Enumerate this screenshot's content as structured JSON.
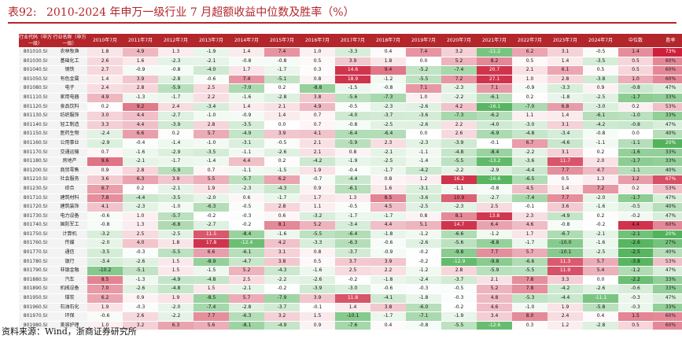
{
  "title": {
    "label": "表92:",
    "text": "2010-2024 年申万一级行业 7 月超额收益中位数及胜率（%）"
  },
  "table": {
    "headers": [
      "行业代码（申万一级）",
      "行业名称（申万一级）",
      "2010年7月",
      "2011年7月",
      "2012年7月",
      "2013年7月",
      "2014年7月",
      "2015年7月",
      "2016年7月",
      "2017年7月",
      "2018年7月",
      "2019年7月",
      "2020年7月",
      "2021年7月",
      "2022年7月",
      "2023年7月",
      "2024年7月",
      "中位数",
      "胜率"
    ],
    "rows": [
      [
        "801010.SI",
        "农林牧渔",
        "1.8",
        "4.9",
        "1.3",
        "-1.9",
        "1.4",
        "7.4",
        "1.0",
        "-3.3",
        "0.4",
        "7.4",
        "3.2",
        "-11.2",
        "6.2",
        "3.1",
        "-0.5",
        "1.4",
        "73%"
      ],
      [
        "801030.SI",
        "基础化工",
        "2.6",
        "1.6",
        "-2.3",
        "-2.1",
        "-0.8",
        "-0.8",
        "0.5",
        "3.9",
        "1.8",
        "0.0",
        "5.2",
        "8.2",
        "0.5",
        "1.4",
        "-3.5",
        "0.5",
        "60%"
      ],
      [
        "801040.SI",
        "钢铁",
        "2.7",
        "-0.9",
        "-0.8",
        "-4.0",
        "1.7",
        "-1.7",
        "0.3",
        "14.6",
        "9.4",
        "-5.2",
        "-7.4",
        "20.7",
        "2.1",
        "6.1",
        "0.5",
        "0.5",
        "60%"
      ],
      [
        "801050.SI",
        "有色金属",
        "1.4",
        "3.9",
        "-2.8",
        "-0.6",
        "7.4",
        "-5.1",
        "0.8",
        "18.9",
        "-1.2",
        "-5.5",
        "7.2",
        "27.1",
        "1.0",
        "2.8",
        "-3.8",
        "1.0",
        "60%"
      ],
      [
        "801080.SI",
        "电子",
        "2.4",
        "2.8",
        "-5.9",
        "2.5",
        "-7.0",
        "0.2",
        "-8.8",
        "-1.5",
        "-0.8",
        "7.1",
        "-2.3",
        "7.1",
        "-0.9",
        "-3.3",
        "0.9",
        "-0.8",
        "47%"
      ],
      [
        "801110.SI",
        "家用电器",
        "4.9",
        "-1.3",
        "-1.7",
        "2.2",
        "-1.6",
        "-2.8",
        "3.8",
        "-5.6",
        "-7.3",
        "1.0",
        "-2.2",
        "-6.1",
        "0.2",
        "-1.8",
        "-2.5",
        "-1.7",
        "33%"
      ],
      [
        "801120.SI",
        "食品饮料",
        "0.2",
        "9.2",
        "2.4",
        "-3.4",
        "1.4",
        "2.1",
        "4.9",
        "-0.5",
        "-2.3",
        "-2.6",
        "4.2",
        "-16.1",
        "-7.0",
        "6.8",
        "-3.0",
        "0.2",
        "53%"
      ],
      [
        "801130.SI",
        "纺织服饰",
        "3.0",
        "4.4",
        "-2.7",
        "-1.0",
        "-0.9",
        "1.4",
        "0.7",
        "-4.0",
        "-3.7",
        "-3.6",
        "-7.3",
        "-6.2",
        "1.1",
        "1.4",
        "-6.1",
        "-1.0",
        "33%"
      ],
      [
        "801140.SI",
        "轻工制造",
        "3.3",
        "4.4",
        "-3.9",
        "2.8",
        "-3.5",
        "0.0",
        "0.7",
        "-0.8",
        "-2.5",
        "-2.6",
        "2.2",
        "-4.0",
        "-3.0",
        "3.1",
        "-4.2",
        "-0.8",
        "47%"
      ],
      [
        "801150.SI",
        "医药生物",
        "-2.4",
        "6.6",
        "0.2",
        "5.7",
        "-4.9",
        "3.9",
        "4.1",
        "-6.4",
        "-6.4",
        "0.0",
        "2.6",
        "-6.9",
        "-4.8",
        "-3.4",
        "-0.8",
        "0.0",
        "40%"
      ],
      [
        "801160.SI",
        "公用事业",
        "-2.9",
        "-0.4",
        "-1.4",
        "-1.0",
        "-3.1",
        "-0.5",
        "2.1",
        "-5.9",
        "2.3",
        "-2.3",
        "-3.9",
        "-0.1",
        "6.7",
        "-4.6",
        "-1.1",
        "-1.1",
        "20%"
      ],
      [
        "801170.SI",
        "交通运输",
        "0.7",
        "-1.6",
        "-2.9",
        "-3.5",
        "-1.1",
        "-2.6",
        "2.1",
        "0.8",
        "-2.1",
        "-1.1",
        "-4.8",
        "-8.4",
        "-2.2",
        "3.1",
        "0.2",
        "-1.6",
        "33%"
      ],
      [
        "801180.SI",
        "房地产",
        "9.6",
        "-2.1",
        "-1.7",
        "-1.4",
        "4.4",
        "0.2",
        "-4.2",
        "-1.9",
        "-2.5",
        "-1.4",
        "-5.5",
        "-13.2",
        "-3.6",
        "11.7",
        "2.0",
        "-1.7",
        "33%"
      ],
      [
        "801200.SI",
        "商贸零售",
        "0.9",
        "2.8",
        "-5.9",
        "0.7",
        "-1.1",
        "-1.5",
        "1.9",
        "-0.4",
        "-1.7",
        "-4.2",
        "-2.2",
        "-2.9",
        "-4.4",
        "7.7",
        "4.7",
        "-1.1",
        "40%"
      ],
      [
        "801210.SI",
        "社会服务",
        "3.6",
        "6.3",
        "3.9",
        "5.5",
        "-5.7",
        "6.2",
        "-0.7",
        "-4.4",
        "0.8",
        "1.2",
        "16.2",
        "-16.6",
        "-6.5",
        "0.5",
        "1.3",
        "1.2",
        "67%"
      ],
      [
        "801230.SI",
        "综合",
        "6.7",
        "0.2",
        "-2.1",
        "1.9",
        "-2.3",
        "-4.3",
        "0.9",
        "-6.1",
        "1.6",
        "-3.1",
        "-1.1",
        "-0.8",
        "4.5",
        "1.4",
        "7.2",
        "0.2",
        "53%"
      ],
      [
        "801710.SI",
        "建筑材料",
        "7.8",
        "-4.4",
        "-3.5",
        "-2.0",
        "0.6",
        "-1.7",
        "1.7",
        "1.3",
        "8.5",
        "-3.6",
        "10.9",
        "-2.7",
        "-7.4",
        "7.7",
        "-2.0",
        "-1.7",
        "47%"
      ],
      [
        "801720.SI",
        "建筑装饰",
        "4.1",
        "-2.3",
        "-1.0",
        "-6.3",
        "-0.5",
        "2.8",
        "1.1",
        "-0.5",
        "4.5",
        "-2.5",
        "-2.3",
        "2.5",
        "-0.1",
        "3.6",
        "-1.6",
        "-0.5",
        "40%"
      ],
      [
        "801730.SI",
        "电力设备",
        "-0.6",
        "1.0",
        "-5.7",
        "-0.2",
        "-0.3",
        "0.6",
        "-3.2",
        "-1.7",
        "-1.7",
        "0.8",
        "8.1",
        "13.8",
        "2.3",
        "-4.9",
        "0.2",
        "-0.2",
        "47%"
      ],
      [
        "801740.SI",
        "国防军工",
        "-0.8",
        "1.3",
        "-6.8",
        "-2.7",
        "-0.2",
        "8.1",
        "5.2",
        "-3.4",
        "4.4",
        "5.1",
        "14.7",
        "6.4",
        "4.6",
        "-0.8",
        "-0.2",
        "4.4",
        "60%"
      ],
      [
        "801750.SI",
        "计算机",
        "-3.2",
        "2.5",
        "-2.5",
        "11.5",
        "-8.4",
        "-1.6",
        "-5.5",
        "-6.4",
        "-1.8",
        "-1.2",
        "-6.6",
        "-1.2",
        "1.7",
        "-6.7",
        "-2.1",
        "-2.1",
        "20%"
      ],
      [
        "801760.SI",
        "传媒",
        "-2.0",
        "4.0",
        "1.8",
        "17.8",
        "-12.4",
        "4.2",
        "-3.3",
        "-6.3",
        "-0.6",
        "-2.6",
        "-5.6",
        "-8.8",
        "-1.7",
        "-10.0",
        "-1.6",
        "-2.6",
        "27%"
      ],
      [
        "801770.SI",
        "通信",
        "-3.5",
        "-0.3",
        "-5.5",
        "6.6",
        "-6.1",
        "3.1",
        "0.8",
        "-3.7",
        "-0.9",
        "-0.2",
        "-9.8",
        "7.7",
        "5.7",
        "-10.1",
        "-2.5",
        "-2.5",
        "40%"
      ],
      [
        "801780.SI",
        "银行",
        "-3.4",
        "-2.6",
        "1.5",
        "-8.9",
        "-4.7",
        "3.8",
        "0.5",
        "3.7",
        "3.9",
        "-0.2",
        "-12.9",
        "-9.8",
        "-6.6",
        "11.3",
        "5.7",
        "-3.8",
        "53%"
      ],
      [
        "801790.SI",
        "非银金融",
        "-10.2",
        "-5.1",
        "1.5",
        "-1.5",
        "5.2",
        "-4.3",
        "-1.6",
        "2.5",
        "2.2",
        "-1.2",
        "2.8",
        "-5.9",
        "-5.5",
        "11.9",
        "5.4",
        "-1.2",
        "47%"
      ],
      [
        "801880.SI",
        "汽车",
        "8.5",
        "-1.3",
        "-4.9",
        "-4.8",
        "2.5",
        "-2.2",
        "-2.6",
        "-0.2",
        "-1.8",
        "-2.4",
        "-3.7",
        "2.1",
        "7.8",
        "3.3",
        "0.0",
        "-2.2",
        "33%"
      ],
      [
        "801890.SI",
        "机械设备",
        "7.0",
        "-2.6",
        "-4.8",
        "1.5",
        "-2.1",
        "-0.2",
        "-3.9",
        "-3.0",
        "-0.6",
        "-0.3",
        "-0.5",
        "5.2",
        "7.8",
        "-4.2",
        "-2.6",
        "-0.6",
        "33%"
      ],
      [
        "801950.SI",
        "煤炭",
        "6.2",
        "0.9",
        "1.9",
        "-8.5",
        "5.7",
        "-7.9",
        "3.9",
        "11.8",
        "-4.1",
        "-1.8",
        "-0.3",
        "4.8",
        "-5.3",
        "-4.4",
        "-11.1",
        "-0.3",
        "47%"
      ],
      [
        "801960.SI",
        "石油石化",
        "1.9",
        "-0.3",
        "-2.0",
        "-7.4",
        "-2.8",
        "-3.7",
        "-0.1",
        "1.4",
        "3.8",
        "-6.0",
        "-0.2",
        "4.6",
        "-1.0",
        "1.9",
        "-5.8",
        "-0.3",
        "33%"
      ],
      [
        "801970.SI",
        "环保",
        "-0.6",
        "2.6",
        "-2.2",
        "7.7",
        "-6.3",
        "3.2",
        "1.5",
        "-10.1",
        "-1.7",
        "-7.1",
        "-1.9",
        "3.4",
        "8.0",
        "2.4",
        "0.4",
        "1.5",
        "60%"
      ],
      [
        "801980.SI",
        "美容护理",
        "1.0",
        "3.2",
        "6.3",
        "5.6",
        "-8.1",
        "-4.9",
        "0.9",
        "-7.6",
        "0.4",
        "-0.8",
        "-5.5",
        "-12.6",
        "0.3",
        "1.2",
        "-2.8",
        "0.5",
        "60%"
      ]
    ]
  },
  "colors": {
    "header_bg": "#b3262b",
    "strong_red": "#c8102e",
    "strong_green": "#3aa845",
    "title_red": "#b3262b"
  },
  "source": "资料来源：Wind，浙商证券研究所"
}
